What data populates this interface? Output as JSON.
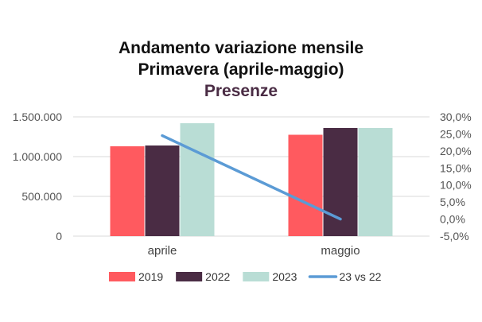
{
  "chart_data": {
    "type": "bar",
    "title_line1": "Andamento variazione mensile",
    "title_line2": "Primavera (aprile-maggio)",
    "subtitle": "Presenze",
    "categories": [
      "aprile",
      "maggio"
    ],
    "series": [
      {
        "name": "2019",
        "type": "bar",
        "color": "#ff5a5f",
        "values": [
          1130000,
          1275000
        ]
      },
      {
        "name": "2022",
        "type": "bar",
        "color": "#4a2c44",
        "values": [
          1140000,
          1360000
        ]
      },
      {
        "name": "2023",
        "type": "bar",
        "color": "#b9ddd5",
        "values": [
          1420000,
          1360000
        ]
      },
      {
        "name": "23 vs 22",
        "type": "line",
        "axis": "right",
        "color": "#5b9bd5",
        "values": [
          24.5,
          0.0
        ]
      }
    ],
    "left_axis": {
      "ylim": [
        0,
        1500000
      ],
      "ticks": [
        0,
        500000,
        1000000,
        1500000
      ],
      "tick_labels": [
        "0",
        "500.000",
        "1.000.000",
        "1.500.000"
      ]
    },
    "right_axis": {
      "ylim": [
        -5,
        30
      ],
      "ticks": [
        -5,
        0,
        5,
        10,
        15,
        20,
        25,
        30
      ],
      "tick_labels": [
        "-5,0%",
        "0,0%",
        "5,0%",
        "10,0%",
        "15,0%",
        "20,0%",
        "25,0%",
        "30,0%"
      ]
    },
    "subtitle_color": "#4a2c44",
    "grid": true,
    "legend_position": "bottom"
  }
}
